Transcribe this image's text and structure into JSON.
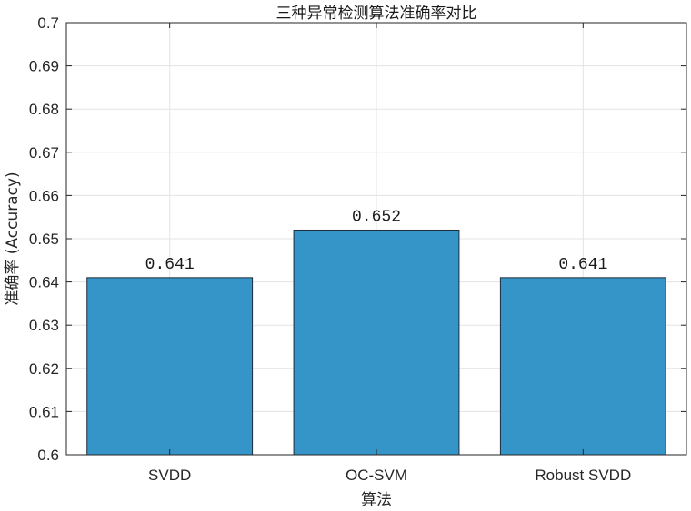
{
  "chart_data": {
    "type": "bar",
    "title": "三种异常检测算法准确率对比",
    "xlabel": "算法",
    "ylabel": "准确率 (Accuracy)",
    "categories": [
      "SVDD",
      "OC-SVM",
      "Robust SVDD"
    ],
    "values": [
      0.641,
      0.652,
      0.641
    ],
    "data_labels": [
      "0.641",
      "0.652",
      "0.641"
    ],
    "ylim": [
      0.6,
      0.7
    ],
    "yticks": [
      0.6,
      0.61,
      0.62,
      0.63,
      0.64,
      0.65,
      0.66,
      0.67,
      0.68,
      0.69,
      0.7
    ],
    "ytick_labels": [
      "0.6",
      "0.61",
      "0.62",
      "0.63",
      "0.64",
      "0.65",
      "0.66",
      "0.67",
      "0.68",
      "0.69",
      "0.7"
    ],
    "grid": true,
    "bar_color": "#3594c8",
    "bar_edge_color": "#1f2d3a"
  }
}
